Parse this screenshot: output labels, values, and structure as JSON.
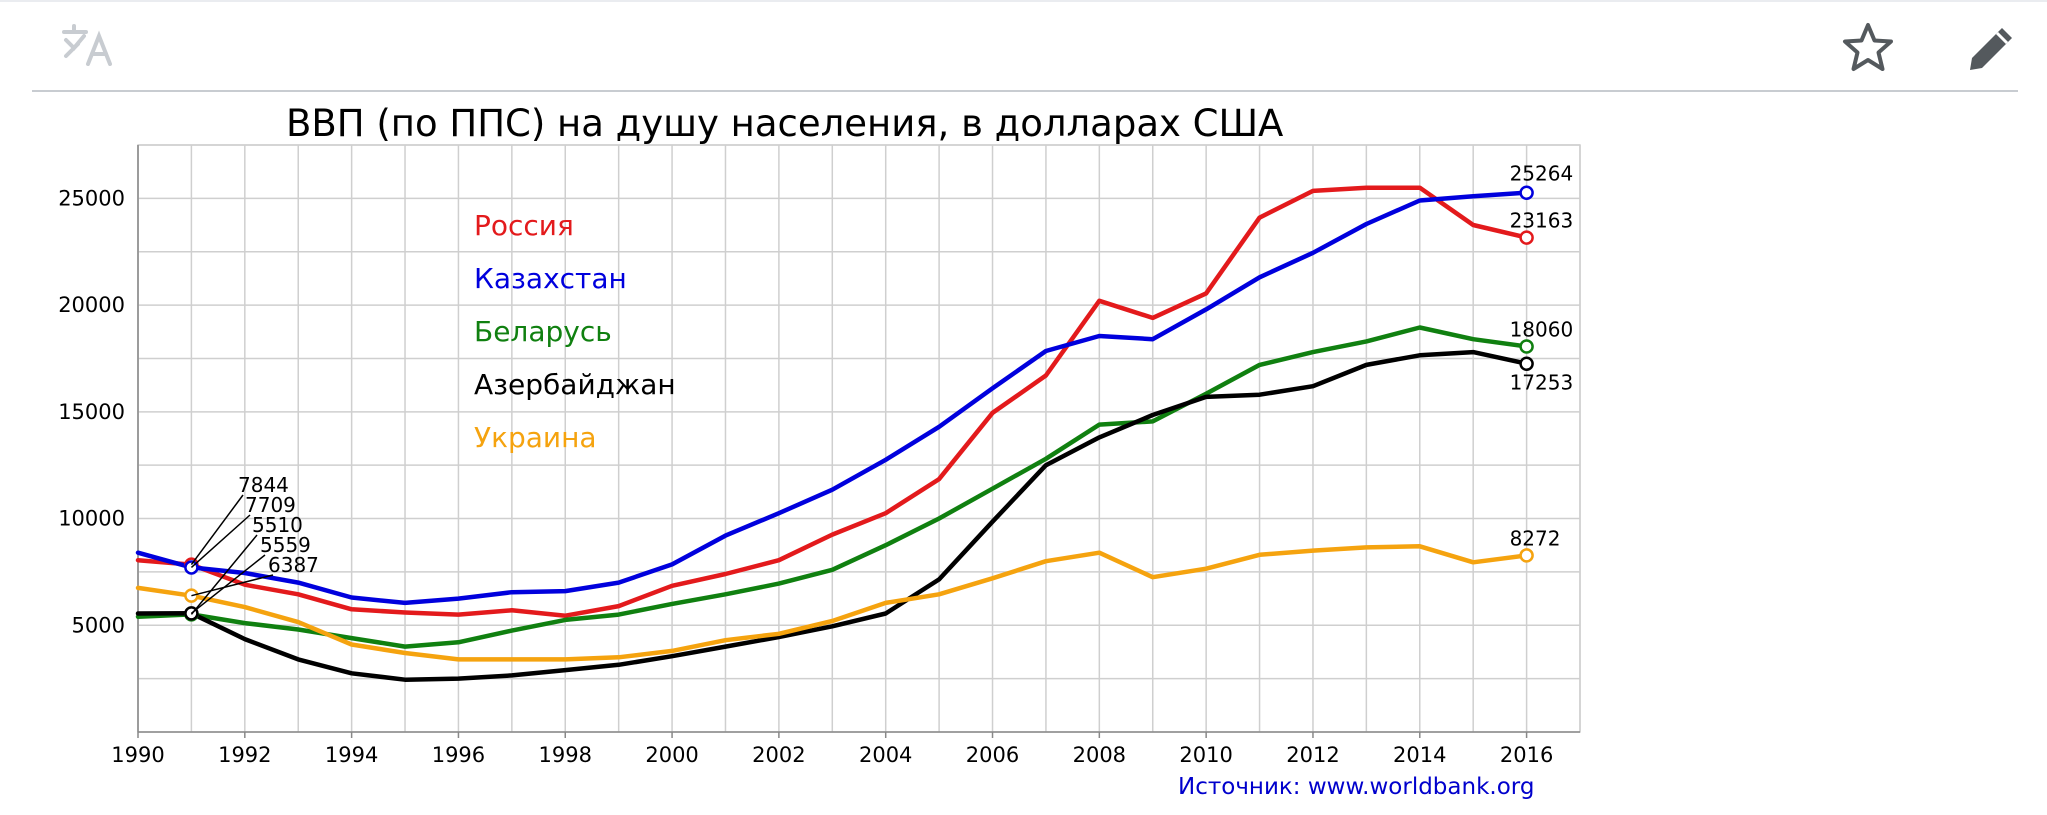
{
  "chart_data": {
    "type": "line",
    "title": "ВВП (по ППС) на душу населения, в долларах США",
    "xlabel": "",
    "ylabel": "",
    "x": [
      1990,
      1991,
      1992,
      1993,
      1994,
      1995,
      1996,
      1997,
      1998,
      1999,
      2000,
      2001,
      2002,
      2003,
      2004,
      2005,
      2006,
      2007,
      2008,
      2009,
      2010,
      2011,
      2012,
      2013,
      2014,
      2015,
      2016
    ],
    "xlim": [
      1990,
      2017
    ],
    "ylim": [
      0,
      27500
    ],
    "x_ticks": [
      "1990",
      "1992",
      "1994",
      "1996",
      "1998",
      "2000",
      "2002",
      "2004",
      "2006",
      "2008",
      "2010",
      "2012",
      "2014",
      "2016"
    ],
    "y_ticks": [
      "5000",
      "10000",
      "15000",
      "20000",
      "25000"
    ],
    "grid": true,
    "legend_position": "top-left",
    "series": [
      {
        "name": "Россия",
        "color": "#e31a1c",
        "values": [
          8050,
          7844,
          6900,
          6450,
          5750,
          5600,
          5500,
          5700,
          5450,
          5900,
          6850,
          7400,
          8050,
          9250,
          10250,
          11850,
          14950,
          16700,
          20200,
          19400,
          20550,
          24100,
          25350,
          25500,
          25500,
          23750,
          23163
        ],
        "start_label": "7844",
        "end_label": "23163"
      },
      {
        "name": "Казахстан",
        "color": "#0000dd",
        "values": [
          8400,
          7709,
          7450,
          7000,
          6300,
          6050,
          6250,
          6550,
          6600,
          7000,
          7850,
          9200,
          10250,
          11350,
          12750,
          14300,
          16100,
          17850,
          18550,
          18400,
          19800,
          21300,
          22450,
          23800,
          24900,
          25100,
          25264
        ],
        "start_label": "7709",
        "end_label": "25264"
      },
      {
        "name": "Беларусь",
        "color": "#108010",
        "values": [
          5400,
          5510,
          5100,
          4800,
          4400,
          4000,
          4200,
          4750,
          5250,
          5500,
          6000,
          6450,
          6950,
          7600,
          8750,
          10000,
          11400,
          12800,
          14400,
          14550,
          15850,
          17200,
          17800,
          18300,
          18950,
          18400,
          18060
        ],
        "start_label": "5510",
        "end_label": "18060"
      },
      {
        "name": "Азербайджан",
        "color": "#000000",
        "values": [
          5550,
          5559,
          4350,
          3400,
          2750,
          2450,
          2500,
          2650,
          2900,
          3150,
          3550,
          4000,
          4450,
          4950,
          5550,
          7150,
          9850,
          12500,
          13800,
          14850,
          15700,
          15800,
          16200,
          17200,
          17650,
          17800,
          17253
        ],
        "start_label": "5559",
        "end_label": "17253"
      },
      {
        "name": "Украина",
        "color": "#f5a30f",
        "values": [
          6750,
          6387,
          5850,
          5150,
          4100,
          3700,
          3400,
          3400,
          3400,
          3500,
          3800,
          4300,
          4600,
          5200,
          6050,
          6450,
          7200,
          8000,
          8400,
          7250,
          7650,
          8300,
          8500,
          8650,
          8700,
          7950,
          8272
        ],
        "start_label": "6387",
        "end_label": "8272"
      }
    ]
  },
  "source": {
    "text": "Источник: www.worldbank.org"
  },
  "colors": {
    "grid": "#cfcfcf",
    "axis": "#888888",
    "toolbar_icon": "#54595d",
    "toolbar_icon_disabled": "#c8ccd1",
    "link": "#0000cc"
  },
  "toolbar": {
    "translate_icon": "translate-icon",
    "star_icon": "star-icon",
    "edit_icon": "pencil-icon"
  }
}
